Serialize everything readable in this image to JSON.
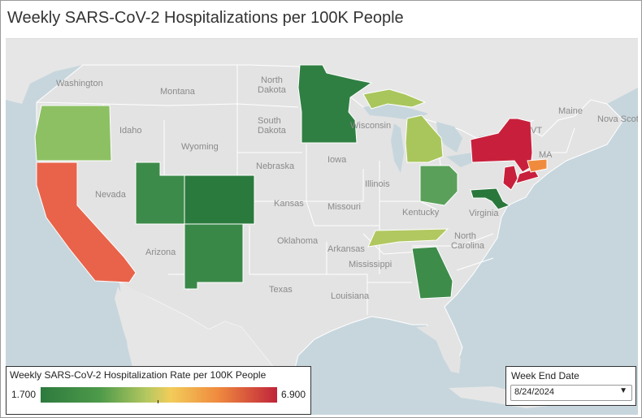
{
  "title": "Weekly SARS-CoV-2 Hospitalizations per 100K People",
  "legend": {
    "title": "Weekly SARS-CoV-2 Hospitalization Rate per 100K People",
    "min": "1.700",
    "max": "6.900",
    "colors": [
      "#2d7a3e",
      "#b5c860",
      "#f2cc5a",
      "#f08a3e",
      "#c0243a"
    ]
  },
  "filter": {
    "label": "Week End Date",
    "value": "8/24/2024"
  },
  "map_labels": {
    "washington": "Washington",
    "montana": "Montana",
    "north_dakota": "North Dakota",
    "south_dakota": "South Dakota",
    "idaho": "Idaho",
    "wyoming": "Wyoming",
    "nebraska": "Nebraska",
    "iowa": "Iowa",
    "wisconsin": "Wisconsin",
    "illinois": "Illinois",
    "nevada": "Nevada",
    "kansas": "Kansas",
    "missouri": "Missouri",
    "kentucky": "Kentucky",
    "virginia": "Virginia",
    "oklahoma": "Oklahoma",
    "arkansas": "Arkansas",
    "north_carolina": "North Carolina",
    "arizona": "Arizona",
    "mississippi": "Mississippi",
    "texas": "Texas",
    "louisiana": "Louisiana",
    "maine": "Maine",
    "vt": "VT",
    "ma": "MA",
    "nova_scotia": "Nova Scotia"
  },
  "highlighted_states": {
    "oregon": "#8dc063",
    "california": "#e8634a",
    "utah": "#3d8b4a",
    "colorado": "#2b7a3d",
    "new_mexico": "#3a8848",
    "minnesota": "#2f7f42",
    "michigan": "#a9c65c",
    "ohio": "#5aa05a",
    "tennessee": "#b1c860",
    "georgia": "#3e8c4a",
    "maryland": "#2a773c",
    "new_york": "#c8203c",
    "connecticut": "#f08b3e",
    "new_jersey": "#c8203c"
  }
}
